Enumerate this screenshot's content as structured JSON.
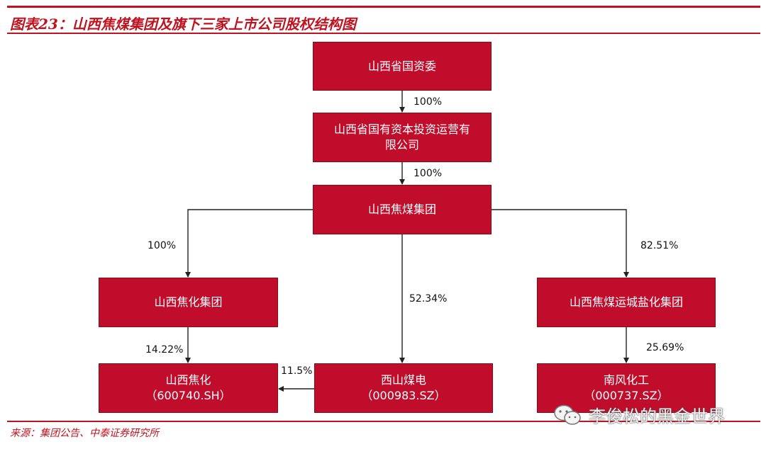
{
  "title": "图表23：山西焦煤集团及旗下三家上市公司股权结构图",
  "source": "来源：集团公告、中泰证券研究所",
  "nodes": {
    "sasac": {
      "line1": "山西省国资委"
    },
    "capital": {
      "line1": "山西省国有资本投资运营有",
      "line2": "限公司"
    },
    "coking_group": {
      "line1": "山西焦煤集团"
    },
    "jiaohua_group": {
      "line1": "山西焦化集团"
    },
    "yuncheng_group": {
      "line1": "山西焦煤运城盐化集团"
    },
    "jiaohua": {
      "line1": "山西焦化",
      "line2": "（600740.SH）"
    },
    "xishan": {
      "line1": "西山煤电",
      "line2": "（000983.SZ）"
    },
    "nanfeng": {
      "line1": "南风化工",
      "line2": "（000737.SZ）"
    }
  },
  "edges": {
    "sasac_capital": "100%",
    "capital_coking": "100%",
    "coking_jiaohua_group": "100%",
    "coking_yuncheng": "82.51%",
    "coking_xishan": "52.34%",
    "jiaohua_group_jiaohua": "14.22%",
    "xishan_jiaohua": "11.5%",
    "yuncheng_nanfeng": "25.69%"
  },
  "watermark": {
    "text": "李俊松的黑金世界",
    "icon": "wechat-icon"
  },
  "colors": {
    "accent": "#c1121f",
    "box_fill": "#c00d2b",
    "line": "#222222"
  }
}
